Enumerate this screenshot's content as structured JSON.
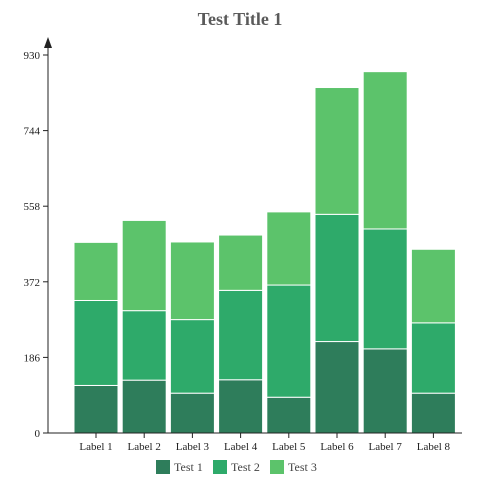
{
  "chart_data": {
    "type": "bar",
    "stacked": true,
    "title": "Test Title 1",
    "xlabel": "",
    "ylabel": "",
    "categories": [
      "Label 1",
      "Label 2",
      "Label 3",
      "Label 4",
      "Label 5",
      "Label 6",
      "Label 7",
      "Label 8"
    ],
    "series": [
      {
        "name": "Test 1",
        "color": "#2e7d5b",
        "values": [
          117,
          130,
          98,
          131,
          88,
          225,
          207,
          98
        ]
      },
      {
        "name": "Test 2",
        "color": "#2eaa6a",
        "values": [
          209,
          171,
          181,
          220,
          276,
          313,
          295,
          173
        ]
      },
      {
        "name": "Test 3",
        "color": "#5cc36b",
        "values": [
          143,
          222,
          191,
          136,
          180,
          312,
          387,
          181
        ]
      }
    ],
    "yticks": [
      "0",
      "186",
      "372",
      "558",
      "744",
      "930"
    ],
    "ylim": [
      0,
      930
    ],
    "legend_position": "bottom",
    "grid": false
  }
}
